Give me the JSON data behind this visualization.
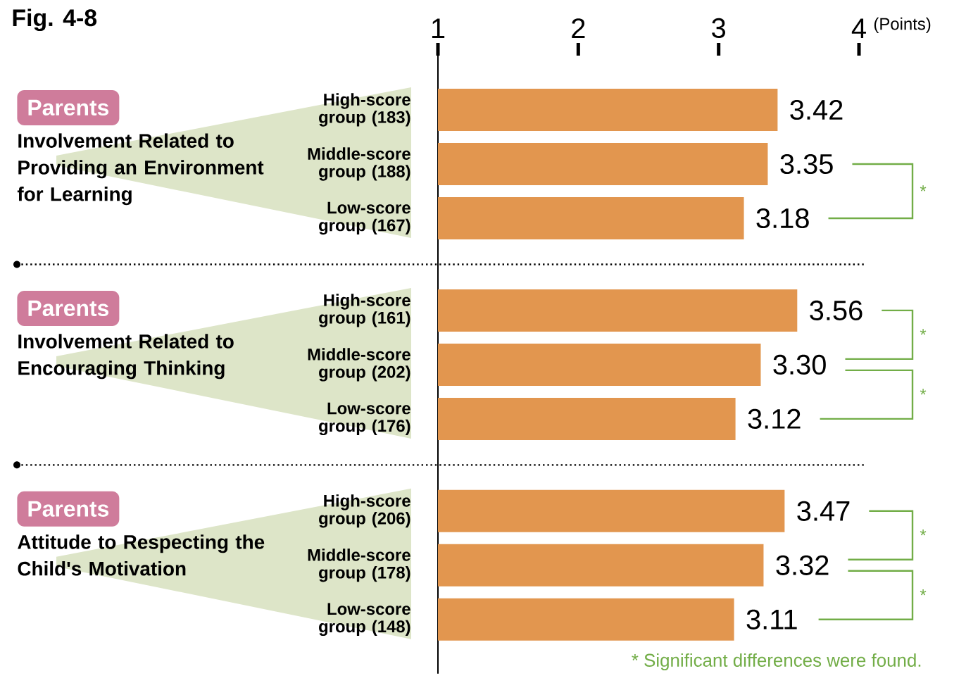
{
  "chart_data": {
    "type": "bar",
    "orientation": "horizontal",
    "title": "Fig. 4-8",
    "xlabel": "(Points)",
    "categories": [
      "High-score group (183)",
      "Middle-score group (188)",
      "Low-score group (167)",
      "High-score group (161)",
      "Middle-score group (202)",
      "Low-score group (176)",
      "High-score group (206)",
      "Middle-score group (178)",
      "Low-score group (148)"
    ],
    "values": [
      3.42,
      3.35,
      3.18,
      3.56,
      3.3,
      3.12,
      3.47,
      3.32,
      3.11
    ],
    "color": "#e2964f",
    "xlim": [
      1,
      4
    ],
    "xticks": [
      1,
      2,
      3,
      4
    ],
    "value_labels": [
      "3.42",
      "3.35",
      "3.18",
      "3.56",
      "3.30",
      "3.12",
      "3.47",
      "3.32",
      "3.11"
    ],
    "annotations": [
      "Parents",
      "Involvement Related to Providing an Environment for Learning",
      "Parents",
      "Involvement Related to Encouraging Thinking",
      "Parents",
      "Attitude to Respecting the Child's Motivation",
      "*",
      "*",
      "*",
      "*",
      "*",
      "* Significant differences were found."
    ]
  }
}
